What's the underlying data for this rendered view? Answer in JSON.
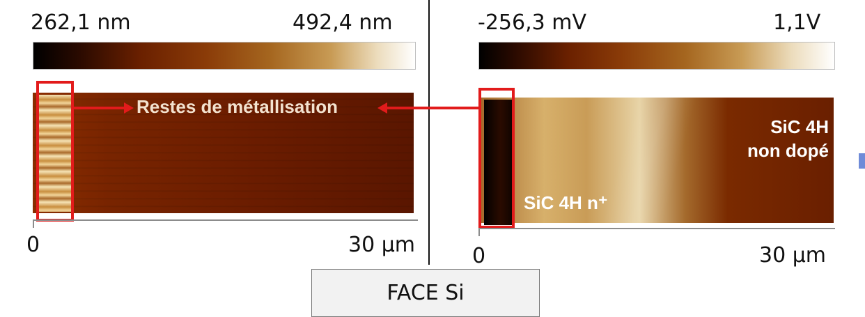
{
  "left_panel": {
    "scale_min": "262,1 nm",
    "scale_max": "492,4 nm",
    "axis_start": "0",
    "axis_end": "30 µm",
    "annotation": "Restes de métallisation"
  },
  "right_panel": {
    "scale_min": "-256,3 mV",
    "scale_max": "1,1V",
    "axis_start": "0",
    "axis_end": "30 µm",
    "label_nplus": "SiC 4H n⁺",
    "label_nondope_line1": "SiC 4H",
    "label_nondope_line2": "non dopé"
  },
  "footer": {
    "caption": "FACE Si"
  },
  "colors": {
    "highlight_red": "#e21b1b",
    "arrow_red": "#e21b1b"
  },
  "icons": {
    "arrow_left_to_right": "arrow-right-icon",
    "arrow_right_to_left": "arrow-left-icon"
  }
}
